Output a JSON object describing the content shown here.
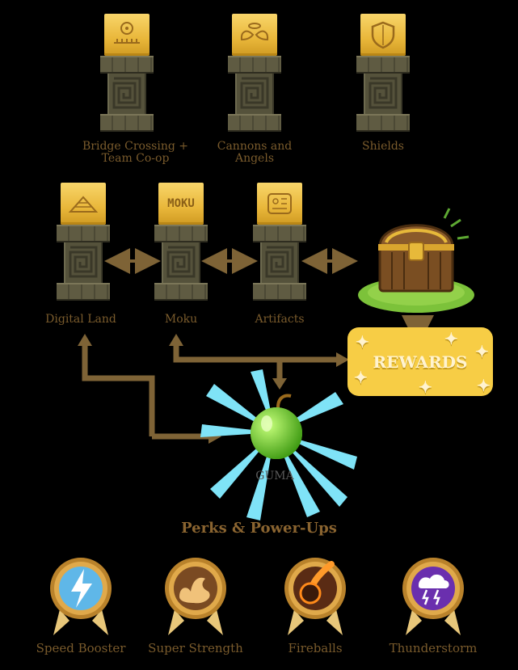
{
  "pillars": {
    "bridge": "Bridge Crossing +\nTeam Co-op",
    "cannons": "Cannons and\nAngels",
    "shields": "Shields",
    "digital_land": "Digital Land",
    "moku": "Moku",
    "moku_cap_text": "MOKU",
    "artifacts": "Artifacts"
  },
  "rewards_label": "REWARDS",
  "guma_label": "GUMA",
  "perks_title": "Perks & Power-Ups",
  "perks": [
    {
      "label": "Speed Booster",
      "icon": "lightning-icon",
      "color": "#5fb7e8"
    },
    {
      "label": "Super Strength",
      "icon": "muscle-arm-icon",
      "color": "#f0c27a"
    },
    {
      "label": "Fireballs",
      "icon": "fireball-icon",
      "color": "#5a2b14"
    },
    {
      "label": "Thunderstorm",
      "icon": "storm-cloud-icon",
      "color": "#6a2fae"
    }
  ],
  "colors": {
    "arrow": "#7e6336",
    "label": "#7a5b2c",
    "gold": "#f7cd45",
    "guma_glow": "#7fe3f7"
  }
}
